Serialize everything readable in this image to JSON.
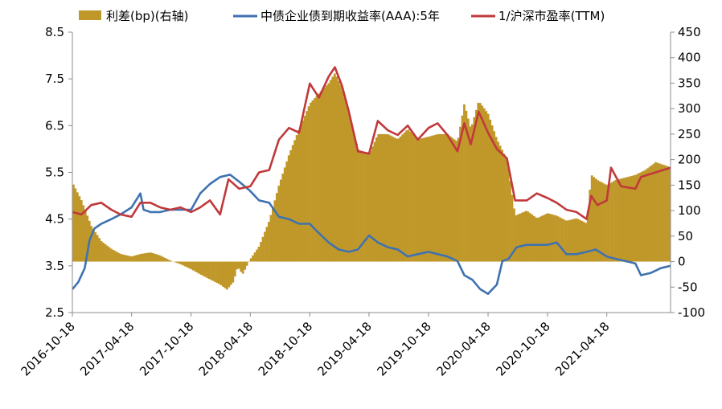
{
  "chart_data": {
    "type": "bar+line",
    "x_ticks": [
      "2016-10-18",
      "2017-04-18",
      "2017-10-18",
      "2018-04-18",
      "2018-10-18",
      "2019-04-18",
      "2019-10-18",
      "2020-04-18",
      "2020-10-18",
      "2021-04-18"
    ],
    "x_range": [
      "2016-10-18",
      "2021-10-31"
    ],
    "y_left": {
      "range": [
        2.5,
        8.5
      ],
      "ticks": [
        "2.5",
        "3.5",
        "4.5",
        "5.5",
        "6.5",
        "7.5",
        "8.5"
      ]
    },
    "y_right": {
      "range": [
        -100,
        450
      ],
      "ticks": [
        "-100",
        "-50",
        "0",
        "50",
        "100",
        "150",
        "200",
        "250",
        "300",
        "350",
        "400",
        "450"
      ]
    },
    "legend": [
      {
        "key": "spread",
        "label": "利差(bp)(右轴)",
        "kind": "bar",
        "color": "#C0982A"
      },
      {
        "key": "bond",
        "label": "中债企业债到期收益率(AAA):5年",
        "kind": "line",
        "color": "#3F72B0"
      },
      {
        "key": "pe",
        "label": "1/沪深市盈率(TTM)",
        "kind": "line",
        "color": "#C0393B"
      }
    ],
    "series": [
      {
        "key": "spread",
        "axis": "right",
        "points": [
          [
            "2016-10-18",
            155
          ],
          [
            "2016-11-15",
            120
          ],
          [
            "2016-12-15",
            70
          ],
          [
            "2017-01-15",
            40
          ],
          [
            "2017-02-15",
            25
          ],
          [
            "2017-03-15",
            15
          ],
          [
            "2017-04-18",
            10
          ],
          [
            "2017-05-15",
            15
          ],
          [
            "2017-06-15",
            18
          ],
          [
            "2017-07-15",
            12
          ],
          [
            "2017-08-15",
            2
          ],
          [
            "2017-09-15",
            -5
          ],
          [
            "2017-10-18",
            -15
          ],
          [
            "2017-11-15",
            -25
          ],
          [
            "2017-12-15",
            -35
          ],
          [
            "2018-01-15",
            -45
          ],
          [
            "2018-02-05",
            -55
          ],
          [
            "2018-02-25",
            -40
          ],
          [
            "2018-03-10",
            -10
          ],
          [
            "2018-03-25",
            -25
          ],
          [
            "2018-04-18",
            5
          ],
          [
            "2018-05-15",
            30
          ],
          [
            "2018-06-15",
            80
          ],
          [
            "2018-07-15",
            150
          ],
          [
            "2018-08-15",
            210
          ],
          [
            "2018-09-15",
            260
          ],
          [
            "2018-10-18",
            310
          ],
          [
            "2018-11-15",
            330
          ],
          [
            "2018-12-15",
            350
          ],
          [
            "2019-01-03",
            370
          ],
          [
            "2019-01-25",
            340
          ],
          [
            "2019-02-15",
            290
          ],
          [
            "2019-03-15",
            220
          ],
          [
            "2019-04-18",
            210
          ],
          [
            "2019-05-15",
            250
          ],
          [
            "2019-06-15",
            250
          ],
          [
            "2019-07-15",
            240
          ],
          [
            "2019-08-15",
            260
          ],
          [
            "2019-09-15",
            240
          ],
          [
            "2019-10-18",
            245
          ],
          [
            "2019-11-15",
            250
          ],
          [
            "2019-12-15",
            250
          ],
          [
            "2020-01-15",
            235
          ],
          [
            "2020-02-05",
            310
          ],
          [
            "2020-02-25",
            260
          ],
          [
            "2020-03-20",
            315
          ],
          [
            "2020-04-18",
            290
          ],
          [
            "2020-05-15",
            240
          ],
          [
            "2020-06-15",
            200
          ],
          [
            "2020-07-10",
            90
          ],
          [
            "2020-08-15",
            100
          ],
          [
            "2020-09-15",
            85
          ],
          [
            "2020-10-18",
            95
          ],
          [
            "2020-11-15",
            90
          ],
          [
            "2020-12-15",
            80
          ],
          [
            "2021-01-15",
            85
          ],
          [
            "2021-02-15",
            75
          ],
          [
            "2021-03-01",
            170
          ],
          [
            "2021-03-20",
            160
          ],
          [
            "2021-04-18",
            150
          ],
          [
            "2021-05-15",
            160
          ],
          [
            "2021-06-15",
            165
          ],
          [
            "2021-07-15",
            170
          ],
          [
            "2021-08-15",
            180
          ],
          [
            "2021-09-15",
            195
          ],
          [
            "2021-10-31",
            185
          ]
        ]
      },
      {
        "key": "bond",
        "axis": "left",
        "points": [
          [
            "2016-10-18",
            3.0
          ],
          [
            "2016-11-05",
            3.15
          ],
          [
            "2016-11-25",
            3.45
          ],
          [
            "2016-12-10",
            4.05
          ],
          [
            "2016-12-25",
            4.3
          ],
          [
            "2017-01-15",
            4.4
          ],
          [
            "2017-02-15",
            4.5
          ],
          [
            "2017-03-15",
            4.6
          ],
          [
            "2017-04-18",
            4.75
          ],
          [
            "2017-05-15",
            5.05
          ],
          [
            "2017-05-25",
            4.7
          ],
          [
            "2017-06-15",
            4.65
          ],
          [
            "2017-07-15",
            4.65
          ],
          [
            "2017-08-15",
            4.7
          ],
          [
            "2017-09-15",
            4.7
          ],
          [
            "2017-10-18",
            4.7
          ],
          [
            "2017-11-15",
            5.05
          ],
          [
            "2017-12-15",
            5.25
          ],
          [
            "2018-01-15",
            5.4
          ],
          [
            "2018-02-15",
            5.45
          ],
          [
            "2018-03-15",
            5.3
          ],
          [
            "2018-04-18",
            5.1
          ],
          [
            "2018-05-15",
            4.9
          ],
          [
            "2018-06-15",
            4.85
          ],
          [
            "2018-07-15",
            4.55
          ],
          [
            "2018-08-15",
            4.5
          ],
          [
            "2018-09-15",
            4.4
          ],
          [
            "2018-10-18",
            4.4
          ],
          [
            "2018-11-15",
            4.2
          ],
          [
            "2018-12-15",
            4.0
          ],
          [
            "2019-01-15",
            3.85
          ],
          [
            "2019-02-15",
            3.8
          ],
          [
            "2019-03-15",
            3.85
          ],
          [
            "2019-04-18",
            4.15
          ],
          [
            "2019-05-15",
            4.0
          ],
          [
            "2019-06-15",
            3.9
          ],
          [
            "2019-07-15",
            3.85
          ],
          [
            "2019-08-15",
            3.7
          ],
          [
            "2019-09-15",
            3.75
          ],
          [
            "2019-10-18",
            3.8
          ],
          [
            "2019-11-15",
            3.75
          ],
          [
            "2019-12-15",
            3.7
          ],
          [
            "2020-01-15",
            3.6
          ],
          [
            "2020-02-05",
            3.3
          ],
          [
            "2020-03-01",
            3.2
          ],
          [
            "2020-03-25",
            3.0
          ],
          [
            "2020-04-18",
            2.9
          ],
          [
            "2020-05-15",
            3.1
          ],
          [
            "2020-06-01",
            3.6
          ],
          [
            "2020-06-20",
            3.65
          ],
          [
            "2020-07-15",
            3.9
          ],
          [
            "2020-08-15",
            3.95
          ],
          [
            "2020-09-15",
            3.95
          ],
          [
            "2020-10-18",
            3.95
          ],
          [
            "2020-11-15",
            4.0
          ],
          [
            "2020-12-15",
            3.75
          ],
          [
            "2021-01-15",
            3.75
          ],
          [
            "2021-02-15",
            3.8
          ],
          [
            "2021-03-15",
            3.85
          ],
          [
            "2021-04-18",
            3.7
          ],
          [
            "2021-05-15",
            3.65
          ],
          [
            "2021-06-15",
            3.6
          ],
          [
            "2021-07-15",
            3.55
          ],
          [
            "2021-08-01",
            3.3
          ],
          [
            "2021-09-01",
            3.35
          ],
          [
            "2021-10-01",
            3.45
          ],
          [
            "2021-10-31",
            3.5
          ]
        ]
      },
      {
        "key": "pe",
        "axis": "left",
        "points": [
          [
            "2016-10-18",
            4.65
          ],
          [
            "2016-11-15",
            4.6
          ],
          [
            "2016-12-15",
            4.8
          ],
          [
            "2017-01-15",
            4.85
          ],
          [
            "2017-02-15",
            4.7
          ],
          [
            "2017-03-15",
            4.6
          ],
          [
            "2017-04-18",
            4.55
          ],
          [
            "2017-05-15",
            4.85
          ],
          [
            "2017-06-15",
            4.85
          ],
          [
            "2017-07-15",
            4.75
          ],
          [
            "2017-08-15",
            4.7
          ],
          [
            "2017-09-15",
            4.75
          ],
          [
            "2017-10-18",
            4.65
          ],
          [
            "2017-11-15",
            4.75
          ],
          [
            "2017-12-15",
            4.9
          ],
          [
            "2018-01-15",
            4.6
          ],
          [
            "2018-02-10",
            5.35
          ],
          [
            "2018-03-15",
            5.15
          ],
          [
            "2018-04-18",
            5.2
          ],
          [
            "2018-05-15",
            5.5
          ],
          [
            "2018-06-15",
            5.55
          ],
          [
            "2018-07-15",
            6.2
          ],
          [
            "2018-08-15",
            6.45
          ],
          [
            "2018-09-15",
            6.35
          ],
          [
            "2018-10-18",
            7.4
          ],
          [
            "2018-11-15",
            7.1
          ],
          [
            "2018-12-15",
            7.55
          ],
          [
            "2019-01-03",
            7.75
          ],
          [
            "2019-01-25",
            7.35
          ],
          [
            "2019-02-15",
            6.8
          ],
          [
            "2019-03-15",
            5.95
          ],
          [
            "2019-04-18",
            5.9
          ],
          [
            "2019-05-15",
            6.6
          ],
          [
            "2019-06-15",
            6.4
          ],
          [
            "2019-07-15",
            6.3
          ],
          [
            "2019-08-15",
            6.5
          ],
          [
            "2019-09-15",
            6.2
          ],
          [
            "2019-10-18",
            6.45
          ],
          [
            "2019-11-15",
            6.55
          ],
          [
            "2019-12-15",
            6.3
          ],
          [
            "2020-01-15",
            5.95
          ],
          [
            "2020-02-05",
            6.55
          ],
          [
            "2020-02-25",
            6.1
          ],
          [
            "2020-03-20",
            6.8
          ],
          [
            "2020-04-18",
            6.35
          ],
          [
            "2020-05-15",
            6.0
          ],
          [
            "2020-06-15",
            5.8
          ],
          [
            "2020-07-10",
            4.9
          ],
          [
            "2020-08-15",
            4.9
          ],
          [
            "2020-09-15",
            5.05
          ],
          [
            "2020-10-18",
            4.95
          ],
          [
            "2020-11-15",
            4.85
          ],
          [
            "2020-12-15",
            4.7
          ],
          [
            "2021-01-15",
            4.65
          ],
          [
            "2021-02-15",
            4.5
          ],
          [
            "2021-03-01",
            5.0
          ],
          [
            "2021-03-20",
            4.8
          ],
          [
            "2021-04-18",
            4.9
          ],
          [
            "2021-05-01",
            5.6
          ],
          [
            "2021-06-01",
            5.2
          ],
          [
            "2021-07-15",
            5.15
          ],
          [
            "2021-08-01",
            5.4
          ],
          [
            "2021-09-15",
            5.5
          ],
          [
            "2021-10-31",
            5.6
          ]
        ]
      }
    ]
  }
}
